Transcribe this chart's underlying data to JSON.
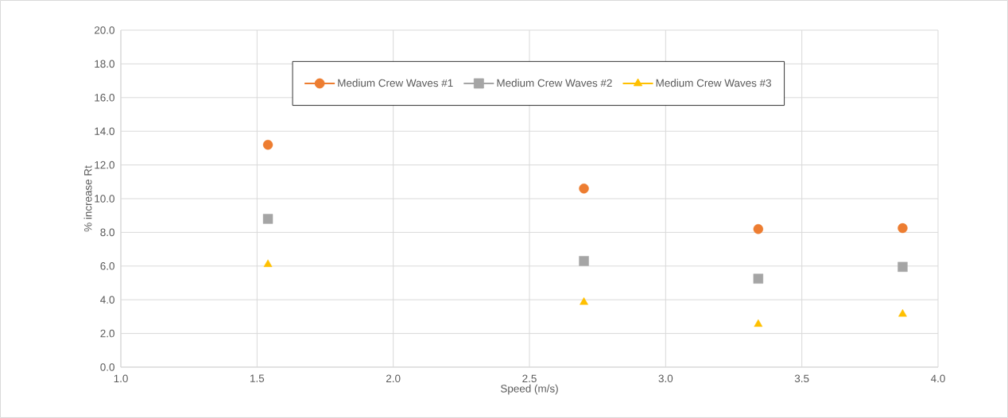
{
  "chart_data": {
    "type": "scatter",
    "xlabel": "Speed (m/s)",
    "ylabel": "% increase Rt",
    "x": [
      1.54,
      2.7,
      3.34,
      3.87
    ],
    "series": [
      {
        "name": "Medium Crew Waves #1",
        "color": "#ed7d31",
        "marker": "circle",
        "values": [
          13.2,
          10.6,
          8.2,
          8.25
        ]
      },
      {
        "name": "Medium Crew Waves #2",
        "color": "#a5a5a5",
        "marker": "square",
        "values": [
          8.8,
          6.3,
          5.25,
          5.95
        ]
      },
      {
        "name": "Medium Crew Waves #3",
        "color": "#ffc000",
        "marker": "triangle",
        "values": [
          6.1,
          3.85,
          2.55,
          3.15
        ]
      }
    ],
    "xlim": [
      1.0,
      4.0
    ],
    "ylim": [
      0,
      20
    ],
    "xticks": [
      {
        "value": 1.0,
        "label": "1.0"
      },
      {
        "value": 1.5,
        "label": "1.5"
      },
      {
        "value": 2.0,
        "label": "2.0"
      },
      {
        "value": 2.5,
        "label": "2.5"
      },
      {
        "value": 3.0,
        "label": "3.0"
      },
      {
        "value": 3.5,
        "label": "3.5"
      },
      {
        "value": 4.0,
        "label": "4.0"
      }
    ],
    "yticks": [
      {
        "value": 0,
        "label": "0.0"
      },
      {
        "value": 2,
        "label": "2.0"
      },
      {
        "value": 4,
        "label": "4.0"
      },
      {
        "value": 6,
        "label": "6.0"
      },
      {
        "value": 8,
        "label": "8.0"
      },
      {
        "value": 10,
        "label": "10.0"
      },
      {
        "value": 12,
        "label": "12.0"
      },
      {
        "value": 14,
        "label": "14.0"
      },
      {
        "value": 16,
        "label": "16.0"
      },
      {
        "value": 18,
        "label": "18.0"
      },
      {
        "value": 20,
        "label": "20.0"
      }
    ],
    "grid": true,
    "legend": "top"
  }
}
